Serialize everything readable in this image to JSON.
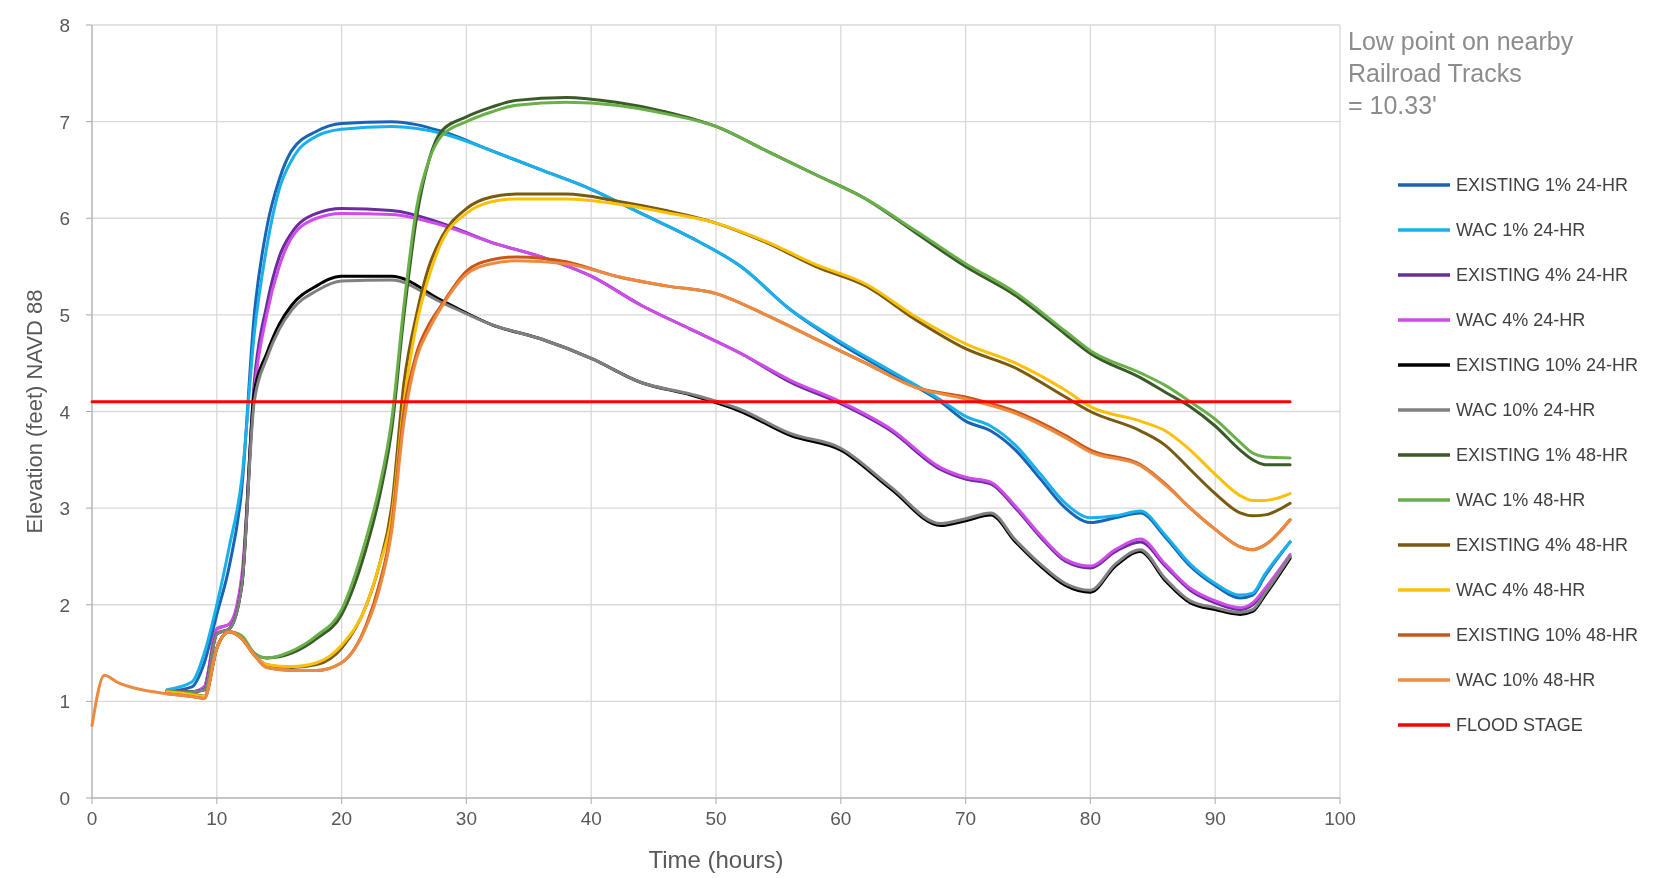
{
  "chart_data": {
    "type": "line",
    "xlabel": "Time (hours)",
    "ylabel": "Elevation (feet) NAVD 88",
    "xlim": [
      0,
      100
    ],
    "xticks": [
      0,
      10,
      20,
      30,
      40,
      50,
      60,
      70,
      80,
      90,
      100
    ],
    "ylim": [
      0,
      8
    ],
    "yticks": [
      0,
      1,
      2,
      3,
      4,
      5,
      6,
      7,
      8
    ],
    "grid": true,
    "legend": "right",
    "annotations": [
      "Low point on nearby\nRailroad Tracks\n= 10.33'"
    ],
    "series": [
      {
        "name": "EXISTING 1% 24-HR",
        "color": "#1a64b4",
        "x": [
          6,
          8,
          9,
          10,
          11,
          12,
          13,
          14,
          15,
          16,
          18,
          20,
          24,
          28,
          32,
          36,
          40,
          44,
          48,
          52,
          56,
          60,
          64,
          68,
          70,
          72,
          74,
          76,
          78,
          80,
          82,
          84,
          86,
          88,
          90,
          92,
          93,
          94,
          96
        ],
        "values": [
          1.1,
          1.15,
          1.4,
          1.9,
          2.4,
          3.2,
          5.0,
          5.9,
          6.4,
          6.7,
          6.9,
          6.98,
          7.0,
          6.9,
          6.7,
          6.5,
          6.3,
          6.05,
          5.8,
          5.5,
          5.05,
          4.7,
          4.4,
          4.1,
          3.9,
          3.8,
          3.6,
          3.3,
          3.0,
          2.85,
          2.9,
          2.95,
          2.7,
          2.4,
          2.2,
          2.07,
          2.1,
          2.3,
          2.65
        ]
      },
      {
        "name": "WAC 1% 24-HR",
        "color": "#1ab0ea",
        "x": [
          6,
          8,
          9,
          10,
          11,
          12,
          13,
          14,
          15,
          16,
          18,
          20,
          24,
          28,
          32,
          36,
          40,
          44,
          48,
          52,
          56,
          60,
          64,
          68,
          70,
          72,
          74,
          76,
          78,
          80,
          82,
          84,
          86,
          88,
          90,
          92,
          93,
          94,
          96
        ],
        "values": [
          1.12,
          1.2,
          1.5,
          2.0,
          2.6,
          3.3,
          4.8,
          5.7,
          6.3,
          6.6,
          6.85,
          6.92,
          6.95,
          6.88,
          6.7,
          6.5,
          6.3,
          6.05,
          5.8,
          5.5,
          5.05,
          4.72,
          4.42,
          4.12,
          3.95,
          3.85,
          3.65,
          3.35,
          3.05,
          2.9,
          2.92,
          2.97,
          2.72,
          2.42,
          2.22,
          2.1,
          2.12,
          2.32,
          2.65
        ]
      },
      {
        "name": "EXISTING 4% 24-HR",
        "color": "#6a2d9e",
        "x": [
          6,
          8,
          9,
          10,
          11,
          12,
          13,
          14,
          15,
          16,
          18,
          20,
          24,
          28,
          32,
          36,
          40,
          44,
          48,
          52,
          56,
          60,
          64,
          68,
          70,
          72,
          74,
          76,
          78,
          80,
          82,
          84,
          86,
          88,
          90,
          92,
          93,
          94,
          96
        ],
        "values": [
          1.1,
          1.1,
          1.15,
          1.75,
          1.8,
          2.2,
          4.3,
          5.1,
          5.6,
          5.85,
          6.05,
          6.1,
          6.08,
          5.95,
          5.75,
          5.6,
          5.4,
          5.1,
          4.85,
          4.6,
          4.3,
          4.08,
          3.8,
          3.4,
          3.3,
          3.25,
          3.0,
          2.7,
          2.45,
          2.38,
          2.55,
          2.65,
          2.4,
          2.15,
          2.02,
          1.95,
          2.0,
          2.15,
          2.5
        ]
      },
      {
        "name": "WAC 4% 24-HR",
        "color": "#d04ce8",
        "x": [
          6,
          8,
          9,
          10,
          11,
          12,
          13,
          14,
          15,
          16,
          18,
          20,
          24,
          28,
          32,
          36,
          40,
          44,
          48,
          52,
          56,
          60,
          64,
          68,
          70,
          72,
          74,
          76,
          78,
          80,
          82,
          84,
          86,
          88,
          90,
          92,
          93,
          94,
          96
        ],
        "values": [
          1.1,
          1.1,
          1.15,
          1.75,
          1.8,
          2.3,
          4.2,
          5.0,
          5.5,
          5.8,
          6.0,
          6.05,
          6.04,
          5.93,
          5.75,
          5.6,
          5.4,
          5.1,
          4.85,
          4.6,
          4.32,
          4.1,
          3.82,
          3.42,
          3.32,
          3.27,
          3.02,
          2.72,
          2.47,
          2.4,
          2.57,
          2.68,
          2.42,
          2.17,
          2.04,
          1.97,
          2.02,
          2.17,
          2.52
        ]
      },
      {
        "name": "EXISTING 10% 24-HR",
        "color": "#000000",
        "x": [
          6,
          8,
          9,
          10,
          11,
          12,
          13,
          14,
          15,
          16,
          18,
          20,
          24,
          28,
          32,
          36,
          40,
          44,
          48,
          52,
          56,
          60,
          64,
          68,
          70,
          72,
          74,
          76,
          78,
          80,
          82,
          84,
          86,
          88,
          90,
          92,
          93,
          94,
          96
        ],
        "values": [
          1.1,
          1.1,
          1.12,
          1.7,
          1.75,
          2.2,
          4.2,
          4.6,
          4.9,
          5.1,
          5.3,
          5.4,
          5.4,
          5.15,
          4.9,
          4.75,
          4.55,
          4.3,
          4.17,
          4.0,
          3.75,
          3.6,
          3.2,
          2.82,
          2.87,
          2.93,
          2.65,
          2.4,
          2.2,
          2.13,
          2.4,
          2.55,
          2.25,
          2.02,
          1.95,
          1.9,
          1.93,
          2.1,
          2.48
        ]
      },
      {
        "name": "WAC 10% 24-HR",
        "color": "#808080",
        "x": [
          6,
          8,
          9,
          10,
          11,
          12,
          13,
          14,
          15,
          16,
          18,
          20,
          24,
          28,
          32,
          36,
          40,
          44,
          48,
          52,
          56,
          60,
          64,
          68,
          70,
          72,
          74,
          76,
          78,
          80,
          82,
          84,
          86,
          88,
          90,
          92,
          93,
          94,
          96
        ],
        "values": [
          1.1,
          1.1,
          1.12,
          1.7,
          1.75,
          2.2,
          4.1,
          4.55,
          4.85,
          5.05,
          5.25,
          5.35,
          5.36,
          5.13,
          4.9,
          4.75,
          4.55,
          4.3,
          4.18,
          4.02,
          3.77,
          3.62,
          3.22,
          2.84,
          2.89,
          2.95,
          2.67,
          2.42,
          2.22,
          2.15,
          2.42,
          2.57,
          2.27,
          2.04,
          1.97,
          1.92,
          1.95,
          2.12,
          2.5
        ]
      },
      {
        "name": "EXISTING 1% 48-HR",
        "color": "#3a5a28",
        "x": [
          6,
          8,
          9,
          10,
          11,
          12,
          13,
          14,
          16,
          18,
          20,
          22,
          23,
          24,
          25,
          26,
          27,
          28,
          30,
          32,
          34,
          38,
          42,
          46,
          50,
          54,
          58,
          62,
          66,
          70,
          74,
          78,
          80,
          84,
          86,
          88,
          90,
          92,
          93,
          94,
          96
        ],
        "values": [
          1.1,
          1.08,
          1.05,
          1.55,
          1.72,
          1.65,
          1.5,
          1.45,
          1.5,
          1.65,
          1.9,
          2.6,
          3.1,
          3.8,
          5.0,
          6.0,
          6.6,
          6.9,
          7.05,
          7.15,
          7.22,
          7.25,
          7.2,
          7.1,
          6.95,
          6.7,
          6.45,
          6.2,
          5.85,
          5.5,
          5.2,
          4.8,
          4.6,
          4.35,
          4.2,
          4.05,
          3.85,
          3.6,
          3.5,
          3.45,
          3.45
        ]
      },
      {
        "name": "WAC 1% 48-HR",
        "color": "#6ab04a",
        "x": [
          6,
          8,
          9,
          10,
          11,
          12,
          13,
          14,
          16,
          18,
          20,
          22,
          23,
          24,
          25,
          26,
          27,
          28,
          30,
          32,
          34,
          38,
          42,
          46,
          50,
          54,
          58,
          62,
          66,
          70,
          74,
          78,
          80,
          84,
          86,
          88,
          90,
          92,
          93,
          94,
          96
        ],
        "values": [
          1.1,
          1.08,
          1.05,
          1.55,
          1.72,
          1.68,
          1.5,
          1.45,
          1.52,
          1.68,
          1.95,
          2.7,
          3.2,
          3.9,
          5.1,
          6.1,
          6.6,
          6.85,
          7.0,
          7.1,
          7.17,
          7.2,
          7.17,
          7.08,
          6.95,
          6.7,
          6.45,
          6.2,
          5.87,
          5.53,
          5.23,
          4.83,
          4.63,
          4.4,
          4.27,
          4.1,
          3.92,
          3.68,
          3.57,
          3.53,
          3.52
        ]
      },
      {
        "name": "EXISTING 4% 48-HR",
        "color": "#7a5a10",
        "x": [
          6,
          8,
          9,
          10,
          11,
          12,
          13,
          14,
          16,
          18,
          20,
          22,
          23,
          24,
          25,
          26,
          27,
          28,
          30,
          32,
          34,
          38,
          42,
          46,
          50,
          54,
          58,
          62,
          66,
          70,
          74,
          78,
          80,
          84,
          86,
          88,
          90,
          92,
          93,
          94,
          96
        ],
        "values": [
          1.1,
          1.07,
          1.05,
          1.55,
          1.72,
          1.65,
          1.48,
          1.38,
          1.35,
          1.38,
          1.55,
          2.0,
          2.4,
          3.0,
          4.3,
          5.0,
          5.5,
          5.8,
          6.1,
          6.22,
          6.25,
          6.25,
          6.18,
          6.08,
          5.95,
          5.75,
          5.5,
          5.3,
          4.95,
          4.65,
          4.45,
          4.15,
          4.0,
          3.8,
          3.65,
          3.4,
          3.15,
          2.95,
          2.92,
          2.93,
          3.05
        ]
      },
      {
        "name": "WAC 4% 48-HR",
        "color": "#fbc00a",
        "x": [
          6,
          8,
          9,
          10,
          11,
          12,
          13,
          14,
          16,
          18,
          20,
          22,
          23,
          24,
          25,
          26,
          27,
          28,
          30,
          32,
          34,
          38,
          42,
          46,
          50,
          54,
          58,
          62,
          66,
          70,
          74,
          78,
          80,
          84,
          86,
          88,
          90,
          92,
          93,
          94,
          96
        ],
        "values": [
          1.1,
          1.07,
          1.05,
          1.55,
          1.72,
          1.65,
          1.48,
          1.38,
          1.36,
          1.4,
          1.58,
          2.0,
          2.4,
          2.9,
          4.1,
          4.9,
          5.4,
          5.75,
          6.05,
          6.17,
          6.2,
          6.2,
          6.15,
          6.06,
          5.95,
          5.76,
          5.52,
          5.32,
          4.98,
          4.7,
          4.5,
          4.22,
          4.05,
          3.9,
          3.8,
          3.6,
          3.35,
          3.13,
          3.08,
          3.08,
          3.15
        ]
      },
      {
        "name": "EXISTING 10% 48-HR",
        "color": "#c8561a",
        "x": [
          6,
          8,
          9,
          10,
          11,
          12,
          13,
          14,
          16,
          18,
          20,
          22,
          23,
          24,
          25,
          26,
          27,
          28,
          30,
          32,
          34,
          38,
          42,
          46,
          50,
          54,
          58,
          62,
          66,
          70,
          74,
          78,
          80,
          84,
          86,
          88,
          90,
          92,
          93,
          94,
          96
        ],
        "values": [
          1.08,
          1.05,
          1.03,
          1.55,
          1.72,
          1.65,
          1.48,
          1.35,
          1.32,
          1.32,
          1.4,
          1.8,
          2.2,
          2.8,
          4.0,
          4.6,
          4.9,
          5.1,
          5.45,
          5.57,
          5.6,
          5.55,
          5.4,
          5.3,
          5.22,
          5.0,
          4.75,
          4.5,
          4.25,
          4.15,
          4.0,
          3.75,
          3.6,
          3.45,
          3.25,
          3.0,
          2.78,
          2.6,
          2.57,
          2.62,
          2.88
        ]
      },
      {
        "name": "WAC 10% 48-HR",
        "color": "#ec8a40",
        "x": [
          0,
          1,
          2,
          4,
          6,
          8,
          9,
          10,
          11,
          12,
          13,
          14,
          16,
          18,
          20,
          22,
          23,
          24,
          25,
          26,
          27,
          28,
          30,
          32,
          34,
          38,
          42,
          46,
          50,
          54,
          58,
          62,
          66,
          70,
          74,
          78,
          80,
          84,
          86,
          88,
          90,
          92,
          93,
          94,
          96
        ],
        "values": [
          0.75,
          1.27,
          1.2,
          1.12,
          1.08,
          1.05,
          1.03,
          1.55,
          1.72,
          1.65,
          1.48,
          1.35,
          1.32,
          1.32,
          1.4,
          1.78,
          2.15,
          2.75,
          3.9,
          4.55,
          4.85,
          5.08,
          5.42,
          5.53,
          5.56,
          5.53,
          5.4,
          5.3,
          5.22,
          5.0,
          4.75,
          4.5,
          4.25,
          4.13,
          3.98,
          3.73,
          3.58,
          3.44,
          3.24,
          3.0,
          2.78,
          2.6,
          2.57,
          2.62,
          2.88
        ]
      },
      {
        "name": "FLOOD STAGE",
        "color": "#ff0000",
        "x": [
          0,
          96
        ],
        "values": [
          4.1,
          4.1
        ]
      }
    ]
  }
}
